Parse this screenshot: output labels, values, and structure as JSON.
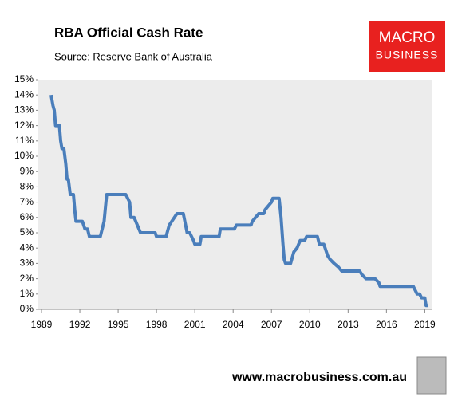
{
  "chart_data": {
    "type": "line",
    "title": "RBA Official Cash Rate",
    "subtitle": "Source: Reserve Bank of Australia",
    "x": [
      1989.75,
      1989.9,
      1990.0,
      1990.1,
      1990.4,
      1990.5,
      1990.6,
      1990.75,
      1990.9,
      1991.0,
      1991.1,
      1991.25,
      1991.5,
      1991.6,
      1991.7,
      1992.2,
      1992.4,
      1992.6,
      1992.75,
      1993.6,
      1993.9,
      1994.1,
      1995.6,
      1995.9,
      1996.0,
      1996.25,
      1996.5,
      1996.75,
      1997.9,
      1998.0,
      1998.75,
      1999.0,
      1999.4,
      1999.6,
      2000.1,
      2000.4,
      2000.6,
      2000.9,
      2001.0,
      2001.4,
      2001.5,
      2002.9,
      2003.0,
      2004.1,
      2004.25,
      2005.4,
      2005.5,
      2005.75,
      2006.0,
      2006.4,
      2006.5,
      2006.75,
      2007.0,
      2007.1,
      2007.6,
      2007.75,
      2007.9,
      2008.0,
      2008.1,
      2008.5,
      2008.75,
      2009.0,
      2009.25,
      2009.6,
      2009.75,
      2010.6,
      2010.75,
      2011.1,
      2011.4,
      2011.6,
      2011.9,
      2012.25,
      2012.5,
      2013.9,
      2014.1,
      2014.4,
      2015.1,
      2015.4,
      2015.5,
      2018.1,
      2018.25,
      2018.4,
      2018.6,
      2018.75,
      2019.0,
      2019.1,
      2019.25
    ],
    "series": [
      {
        "color": "#4a7ebb",
        "values": [
          14,
          13.3,
          13,
          12,
          12,
          11,
          10.5,
          10.5,
          9.5,
          8.5,
          8.5,
          7.5,
          7.5,
          6.5,
          5.75,
          5.75,
          5.25,
          5.25,
          4.75,
          4.75,
          5.75,
          7.5,
          7.5,
          7,
          6,
          6,
          5.5,
          5,
          5,
          4.75,
          4.75,
          5.5,
          6,
          6.25,
          6.25,
          5,
          5,
          4.5,
          4.25,
          4.25,
          4.75,
          4.75,
          5.25,
          5.25,
          5.5,
          5.5,
          5.75,
          6,
          6.25,
          6.25,
          6.5,
          6.75,
          7,
          7.25,
          7.25,
          6,
          4.25,
          3.25,
          3,
          3,
          3.75,
          4,
          4.5,
          4.5,
          4.75,
          4.75,
          4.25,
          4.25,
          3.5,
          3.25,
          3,
          2.75,
          2.5,
          2.5,
          2.25,
          2,
          2,
          1.75,
          1.5,
          1.5,
          1.25,
          1,
          1,
          0.75,
          0.75,
          0.25,
          0.25
        ]
      }
    ],
    "xlim": [
      1988.75,
      2019.6
    ],
    "xticks": [
      1989,
      1992,
      1995,
      1998,
      2001,
      2004,
      2007,
      2010,
      2013,
      2016,
      2019
    ],
    "ylim": [
      0,
      15
    ],
    "yticks": [
      {
        "value": 0,
        "label": "0%"
      },
      {
        "value": 1,
        "label": "1%"
      },
      {
        "value": 2,
        "label": "2%"
      },
      {
        "value": 3,
        "label": "3%"
      },
      {
        "value": 4,
        "label": "4%"
      },
      {
        "value": 5,
        "label": "5%"
      },
      {
        "value": 6,
        "label": "6%"
      },
      {
        "value": 7,
        "label": "7%"
      },
      {
        "value": 8,
        "label": "8%"
      },
      {
        "value": 9,
        "label": "9%"
      },
      {
        "value": 10,
        "label": "10%"
      },
      {
        "value": 11,
        "label": "11%"
      },
      {
        "value": 12,
        "label": "12%"
      },
      {
        "value": 13,
        "label": "13%"
      },
      {
        "value": 14,
        "label": "14%"
      },
      {
        "value": 15,
        "label": "15%"
      }
    ]
  },
  "logo": {
    "line1": "MACRO",
    "line2": "BUSINESS"
  },
  "footer": "www.macrobusiness.com.au"
}
